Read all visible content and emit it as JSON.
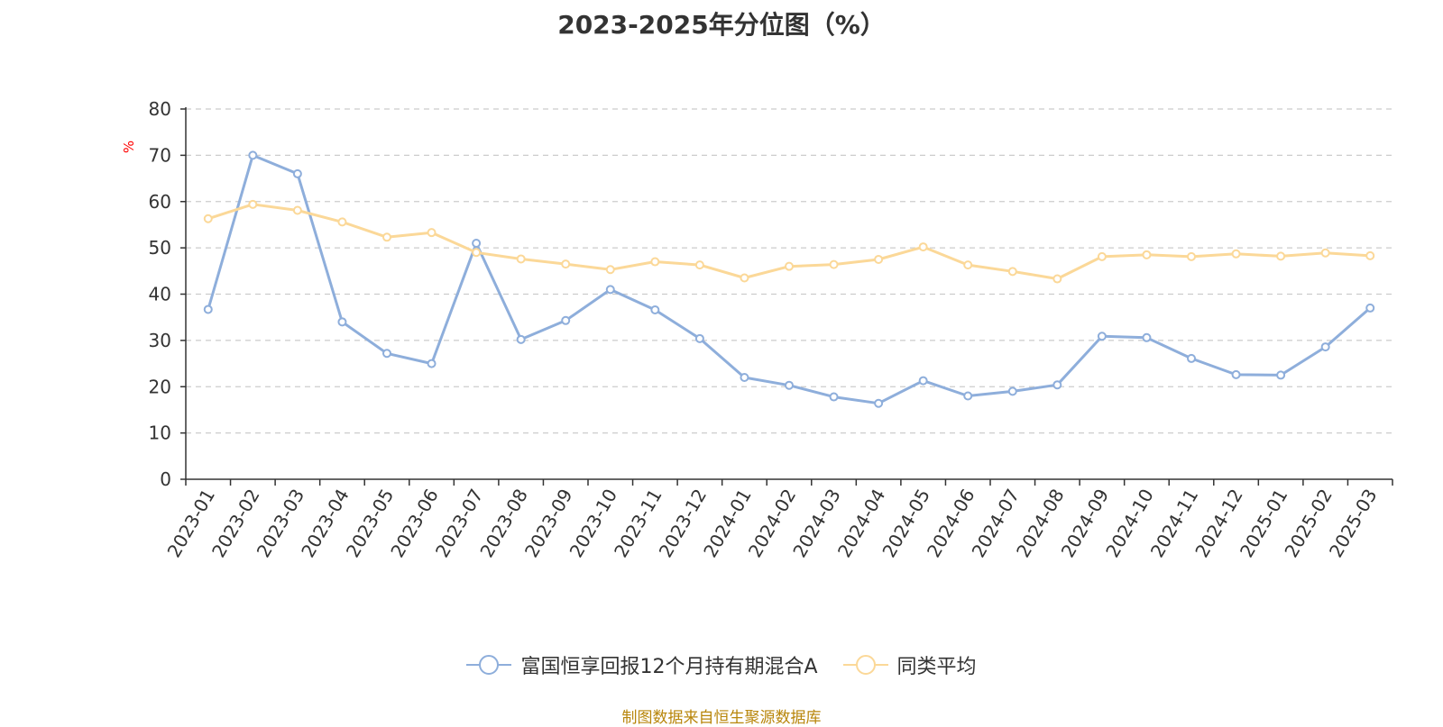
{
  "chart_data": {
    "type": "line",
    "title": "2023-2025年分位图（%）",
    "ylabel": "%",
    "ylim": [
      0,
      80
    ],
    "yticks": [
      0,
      10,
      20,
      30,
      40,
      50,
      60,
      70,
      80
    ],
    "grid": true,
    "legend_position": "bottom",
    "categories": [
      "2023-01",
      "2023-02",
      "2023-03",
      "2023-04",
      "2023-05",
      "2023-06",
      "2023-07",
      "2023-08",
      "2023-09",
      "2023-10",
      "2023-11",
      "2023-12",
      "2024-01",
      "2024-02",
      "2024-03",
      "2024-04",
      "2024-05",
      "2024-06",
      "2024-07",
      "2024-08",
      "2024-09",
      "2024-10",
      "2024-11",
      "2024-12",
      "2025-01",
      "2025-02",
      "2025-03"
    ],
    "series": [
      {
        "name": "富国恒享回报12个月持有期混合A",
        "color": "#8eaedb",
        "values": [
          36.7,
          70.0,
          66.0,
          34.0,
          27.2,
          25.0,
          51.0,
          30.2,
          34.3,
          41.0,
          36.6,
          30.4,
          22.0,
          20.3,
          17.8,
          16.4,
          21.3,
          18.0,
          19.0,
          20.4,
          30.9,
          30.6,
          26.1,
          22.6,
          22.5,
          28.6,
          37.0
        ]
      },
      {
        "name": "同类平均",
        "color": "#fbd898",
        "values": [
          56.3,
          59.4,
          58.1,
          55.6,
          52.3,
          53.3,
          49.0,
          47.6,
          46.5,
          45.3,
          47.0,
          46.3,
          43.5,
          46.0,
          46.4,
          47.5,
          50.2,
          46.3,
          44.9,
          43.3,
          48.1,
          48.5,
          48.1,
          48.7,
          48.2,
          48.9,
          48.3
        ]
      }
    ],
    "source_note": "制图数据来自恒生聚源数据库"
  }
}
